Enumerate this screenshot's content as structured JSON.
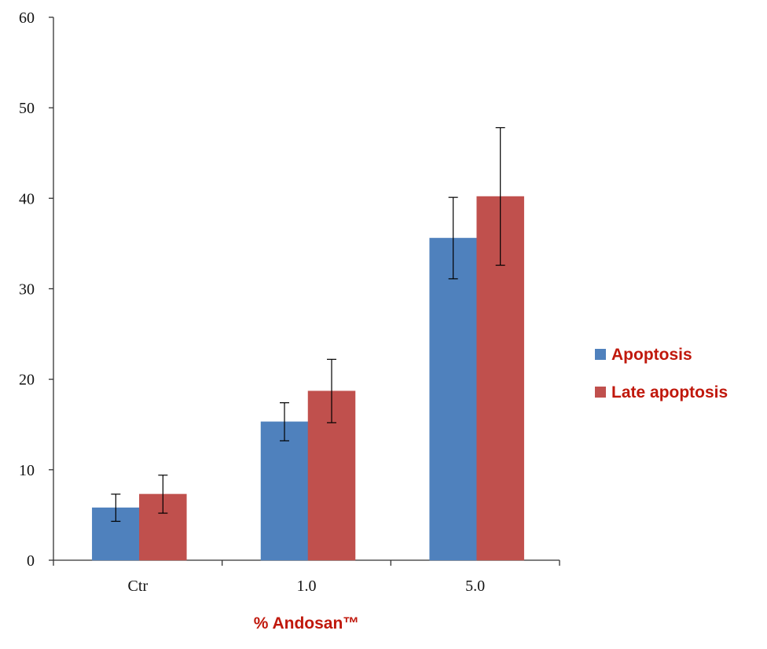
{
  "chart_data": {
    "type": "bar",
    "title": "",
    "xlabel": "% Andosan™",
    "ylabel": "",
    "categories": [
      "Ctr",
      "1.0",
      "5.0"
    ],
    "ylim": [
      0,
      60
    ],
    "yticks": [
      0,
      10,
      20,
      30,
      40,
      50,
      60
    ],
    "grid": false,
    "legend_position": "right",
    "series": [
      {
        "name": "Apoptosis",
        "color": "#4f81bd",
        "values": [
          5.8,
          15.3,
          35.6
        ],
        "error": [
          1.5,
          2.1,
          4.5
        ]
      },
      {
        "name": "Late apoptosis",
        "color": "#c0504d",
        "values": [
          7.3,
          18.7,
          40.2
        ],
        "error": [
          2.1,
          3.5,
          7.6
        ]
      }
    ],
    "text_color": "#c0180c"
  }
}
